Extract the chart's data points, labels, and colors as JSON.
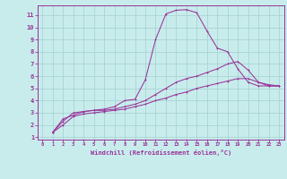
{
  "xlabel": "Windchill (Refroidissement éolien,°C)",
  "bg_color": "#c8ecec",
  "grid_color": "#aad4d4",
  "line_color": "#993399",
  "xlim": [
    -0.5,
    23.5
  ],
  "ylim": [
    0.8,
    11.8
  ],
  "xticks": [
    0,
    1,
    2,
    3,
    4,
    5,
    6,
    7,
    8,
    9,
    10,
    11,
    12,
    13,
    14,
    15,
    16,
    17,
    18,
    19,
    20,
    21,
    22,
    23
  ],
  "yticks": [
    1,
    2,
    3,
    4,
    5,
    6,
    7,
    8,
    9,
    10,
    11
  ],
  "curve1_x": [
    1,
    2,
    3,
    4,
    5,
    6,
    7,
    8,
    9,
    10,
    11,
    12,
    13,
    14,
    15,
    16,
    17,
    18,
    19,
    20,
    21,
    22,
    23
  ],
  "curve1_y": [
    1.4,
    2.5,
    2.8,
    3.1,
    3.2,
    3.3,
    3.5,
    4.0,
    4.1,
    5.7,
    9.0,
    11.1,
    11.4,
    11.45,
    11.2,
    9.7,
    8.3,
    8.0,
    6.6,
    5.5,
    5.2,
    5.2,
    5.2
  ],
  "curve2_x": [
    1,
    2,
    3,
    4,
    5,
    6,
    7,
    8,
    9,
    10,
    11,
    12,
    13,
    14,
    15,
    16,
    17,
    18,
    19,
    20,
    21,
    22,
    23
  ],
  "curve2_y": [
    1.4,
    2.3,
    3.0,
    3.1,
    3.2,
    3.2,
    3.3,
    3.5,
    3.7,
    4.0,
    4.5,
    5.0,
    5.5,
    5.8,
    6.0,
    6.3,
    6.6,
    7.0,
    7.2,
    6.5,
    5.5,
    5.2,
    5.2
  ],
  "curve3_x": [
    1,
    2,
    3,
    4,
    5,
    6,
    7,
    8,
    9,
    10,
    11,
    12,
    13,
    14,
    15,
    16,
    17,
    18,
    19,
    20,
    21,
    22,
    23
  ],
  "curve3_y": [
    1.4,
    2.0,
    2.7,
    2.9,
    3.0,
    3.1,
    3.2,
    3.3,
    3.5,
    3.7,
    4.0,
    4.2,
    4.5,
    4.7,
    5.0,
    5.2,
    5.4,
    5.6,
    5.8,
    5.8,
    5.5,
    5.3,
    5.2
  ]
}
